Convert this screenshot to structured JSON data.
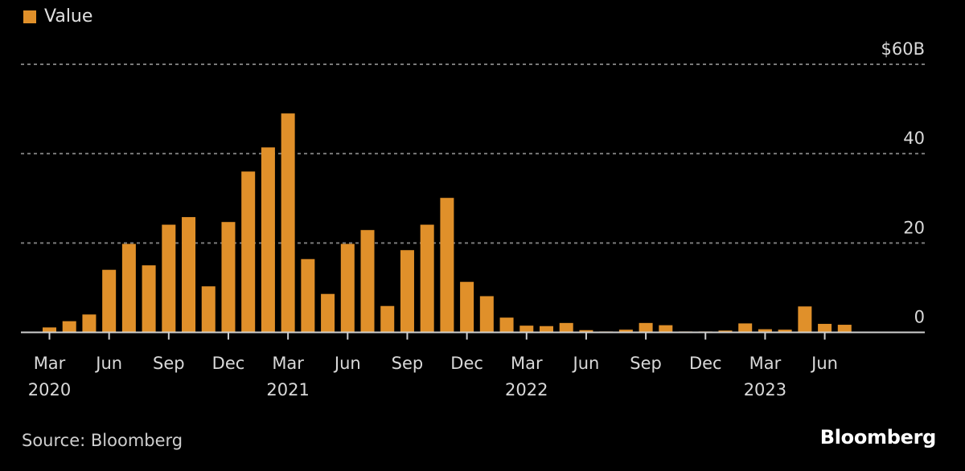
{
  "colors": {
    "bar": "#E0902A",
    "background": "#000000",
    "grid": "#7a7a7a",
    "axis": "#cfcfcf"
  },
  "legend": {
    "label": "Value"
  },
  "source": "Source: Bloomberg",
  "brand": "Bloomberg",
  "chart_data": {
    "type": "bar",
    "title": "",
    "xlabel": "",
    "ylabel": "",
    "ylim": [
      0,
      60
    ],
    "y_ticks": [
      {
        "value": 60,
        "label": "$60B"
      },
      {
        "value": 40,
        "label": "40"
      },
      {
        "value": 20,
        "label": "20"
      },
      {
        "value": 0,
        "label": "0"
      }
    ],
    "grid": true,
    "legend_position": "top-left",
    "categories": [
      "Mar 2020",
      "Apr 2020",
      "May 2020",
      "Jun 2020",
      "Jul 2020",
      "Aug 2020",
      "Sep 2020",
      "Oct 2020",
      "Nov 2020",
      "Dec 2020",
      "Jan 2021",
      "Feb 2021",
      "Mar 2021",
      "Apr 2021",
      "May 2021",
      "Jun 2021",
      "Jul 2021",
      "Aug 2021",
      "Sep 2021",
      "Oct 2021",
      "Nov 2021",
      "Dec 2021",
      "Jan 2022",
      "Feb 2022",
      "Mar 2022",
      "Apr 2022",
      "May 2022",
      "Jun 2022",
      "Jul 2022",
      "Aug 2022",
      "Sep 2022",
      "Oct 2022",
      "Nov 2022",
      "Dec 2022",
      "Jan 2023",
      "Feb 2023",
      "Mar 2023",
      "Apr 2023",
      "May 2023",
      "Jun 2023",
      "Jul 2023"
    ],
    "series": [
      {
        "name": "Value",
        "values": [
          1.1,
          2.5,
          4.0,
          14.0,
          19.8,
          15.0,
          24.1,
          25.8,
          10.3,
          24.7,
          36.0,
          41.4,
          49.0,
          16.4,
          8.6,
          19.8,
          22.9,
          5.9,
          18.4,
          24.1,
          30.1,
          11.3,
          8.1,
          3.3,
          1.5,
          1.4,
          2.1,
          0.5,
          0.2,
          0.6,
          2.1,
          1.6,
          0.2,
          0.2,
          0.4,
          2.0,
          0.7,
          0.6,
          5.8,
          1.9,
          1.7
        ]
      }
    ],
    "x_ticks": [
      {
        "index": 0,
        "month": "Mar",
        "year": "2020"
      },
      {
        "index": 3,
        "month": "Jun",
        "year": ""
      },
      {
        "index": 6,
        "month": "Sep",
        "year": ""
      },
      {
        "index": 9,
        "month": "Dec",
        "year": ""
      },
      {
        "index": 12,
        "month": "Mar",
        "year": "2021"
      },
      {
        "index": 15,
        "month": "Jun",
        "year": ""
      },
      {
        "index": 18,
        "month": "Sep",
        "year": ""
      },
      {
        "index": 21,
        "month": "Dec",
        "year": ""
      },
      {
        "index": 24,
        "month": "Mar",
        "year": "2022"
      },
      {
        "index": 27,
        "month": "Jun",
        "year": ""
      },
      {
        "index": 30,
        "month": "Sep",
        "year": ""
      },
      {
        "index": 33,
        "month": "Dec",
        "year": ""
      },
      {
        "index": 36,
        "month": "Mar",
        "year": "2023"
      },
      {
        "index": 39,
        "month": "Jun",
        "year": ""
      }
    ]
  }
}
